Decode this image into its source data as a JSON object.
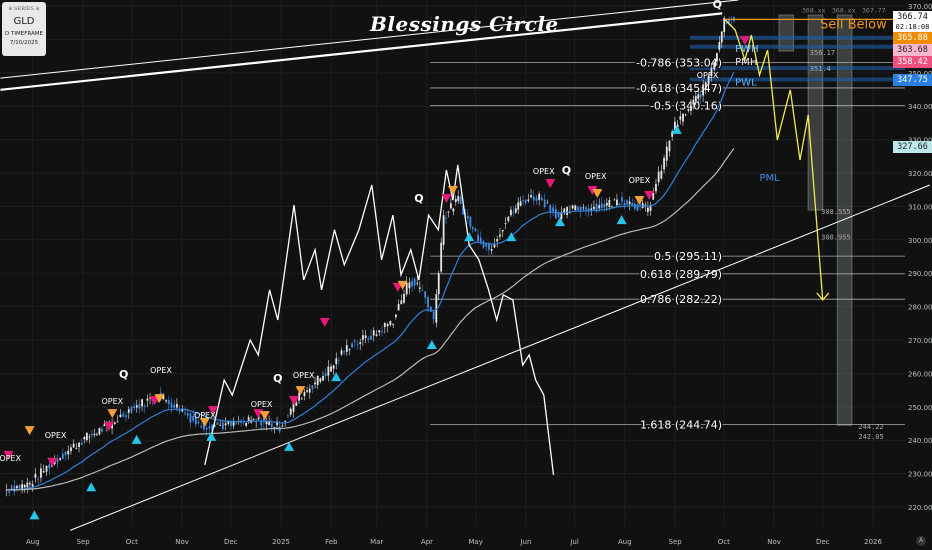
{
  "info_box": {
    "watermark": "※ SERIES ※",
    "symbol": "GLD",
    "timeframe": "D TIMEFRAME",
    "date": "7/10/2025"
  },
  "title": "Blessings Circle",
  "colors": {
    "background": "#111112",
    "up_candle": "#e6e6e6",
    "down_candle": "#3d8ee6",
    "ema": "#2f7fd6",
    "sma": "#b9b9b9",
    "projection_white": "#ffffff",
    "projection_yellow": "#f2e94e",
    "sell_below": "#f0961e",
    "fib": "#cfcfcf",
    "band": "#1f5fa8",
    "signal_up": "#25c4e8",
    "signal_down_pink": "#e8187a",
    "signal_down_orange": "#f5a13a",
    "box": "#8a9590"
  },
  "price_badges": [
    {
      "value": "366.74",
      "sub": "02:18:08",
      "bg": "#ffffff",
      "fg": "#111111",
      "price": 366.74
    },
    {
      "value": "365.88",
      "bg": "#f08c00",
      "fg": "#ffffff",
      "price": 364.2
    },
    {
      "value": "363.68",
      "bg": "#f7b6cc",
      "fg": "#222222",
      "price": 361.0
    },
    {
      "value": "358.42",
      "bg": "#ef4f7e",
      "fg": "#ffffff",
      "price": 357.6
    },
    {
      "value": "347.75",
      "bg": "#2a7fe0",
      "fg": "#ffffff",
      "price": 347.75
    },
    {
      "value": "327.66",
      "bg": "#bde8ea",
      "fg": "#222222",
      "price": 327.66
    }
  ],
  "chart_data": {
    "type": "candlestick",
    "symbol": "GLD",
    "ylim": [
      215,
      372
    ],
    "xlim": [
      "2024-07-12",
      "2026-02-05"
    ],
    "grid": true,
    "y_ticks": [
      220,
      230,
      240,
      250,
      260,
      270,
      280,
      290,
      300,
      310,
      320,
      330,
      340,
      350,
      360,
      370
    ],
    "x_ticks": [
      {
        "label": "Aug",
        "date": "2024-08-01"
      },
      {
        "label": "Sep",
        "date": "2024-09-01"
      },
      {
        "label": "Oct",
        "date": "2024-10-01"
      },
      {
        "label": "Nov",
        "date": "2024-11-01"
      },
      {
        "label": "Dec",
        "date": "2024-12-01"
      },
      {
        "label": "2025",
        "date": "2025-01-01"
      },
      {
        "label": "Feb",
        "date": "2025-02-01"
      },
      {
        "label": "Mar",
        "date": "2025-03-01"
      },
      {
        "label": "Apr",
        "date": "2025-04-01"
      },
      {
        "label": "May",
        "date": "2025-05-01"
      },
      {
        "label": "Jun",
        "date": "2025-06-01"
      },
      {
        "label": "Jul",
        "date": "2025-07-01"
      },
      {
        "label": "Aug",
        "date": "2025-08-01"
      },
      {
        "label": "Sep",
        "date": "2025-09-01"
      },
      {
        "label": "Oct",
        "date": "2025-10-01"
      },
      {
        "label": "Nov",
        "date": "2025-11-01"
      },
      {
        "label": "Dec",
        "date": "2025-12-01"
      },
      {
        "label": "2026",
        "date": "2026-01-01"
      }
    ],
    "closes": [
      [
        "2024-07-15",
        225
      ],
      [
        "2024-07-31",
        227
      ],
      [
        "2024-08-12",
        232.6
      ],
      [
        "2024-09-01",
        240
      ],
      [
        "2024-09-18",
        244.5
      ],
      [
        "2024-09-30",
        249
      ],
      [
        "2024-10-18",
        253.5
      ],
      [
        "2024-11-02",
        249
      ],
      [
        "2024-11-12",
        244.5
      ],
      [
        "2024-12-02",
        244.5
      ],
      [
        "2024-12-19",
        246
      ],
      [
        "2025-01-01",
        244
      ],
      [
        "2025-01-13",
        253
      ],
      [
        "2025-01-31",
        261
      ],
      [
        "2025-02-13",
        268.5
      ],
      [
        "2025-02-28",
        271.5
      ],
      [
        "2025-03-12",
        276
      ],
      [
        "2025-03-22",
        288
      ],
      [
        "2025-03-30",
        285
      ],
      [
        "2025-04-06",
        276
      ],
      [
        "2025-04-12",
        307
      ],
      [
        "2025-04-21",
        312
      ],
      [
        "2025-04-30",
        303
      ],
      [
        "2025-05-10",
        297
      ],
      [
        "2025-05-22",
        307
      ],
      [
        "2025-05-31",
        312
      ],
      [
        "2025-06-10",
        313
      ],
      [
        "2025-06-22",
        307
      ],
      [
        "2025-06-29",
        309
      ],
      [
        "2025-07-17",
        310
      ],
      [
        "2025-07-31",
        312
      ],
      [
        "2025-08-16",
        309
      ],
      [
        "2025-08-26",
        324
      ],
      [
        "2025-08-31",
        333
      ],
      [
        "2025-09-10",
        339
      ],
      [
        "2025-09-19",
        345
      ],
      [
        "2025-09-26",
        354
      ],
      [
        "2025-10-02",
        365.8
      ],
      [
        "2025-10-08",
        366.74
      ]
    ],
    "last_price": 366.74,
    "white_projection": [
      [
        "2024-11-15",
        232.6
      ],
      [
        "2024-11-27",
        258.0
      ],
      [
        "2024-12-02",
        253.5
      ],
      [
        "2024-12-13",
        270.0
      ],
      [
        "2024-12-18",
        265.5
      ],
      [
        "2024-12-25",
        285.0
      ],
      [
        "2024-12-30",
        276.0
      ],
      [
        "2025-01-09",
        310.4
      ],
      [
        "2025-01-15",
        288.0
      ],
      [
        "2025-01-22",
        297.0
      ],
      [
        "2025-01-26",
        285.0
      ],
      [
        "2025-02-03",
        303.0
      ],
      [
        "2025-02-09",
        292.5
      ],
      [
        "2025-02-18",
        303.0
      ],
      [
        "2025-02-26",
        316.4
      ],
      [
        "2025-03-04",
        294.0
      ],
      [
        "2025-03-11",
        307.4
      ],
      [
        "2025-03-16",
        289.5
      ],
      [
        "2025-03-22",
        297.0
      ],
      [
        "2025-03-27",
        288.0
      ],
      [
        "2025-04-02",
        307.4
      ],
      [
        "2025-04-08",
        303.0
      ],
      [
        "2025-04-13",
        320.9
      ],
      [
        "2025-04-17",
        311.9
      ],
      [
        "2025-04-20",
        322.4
      ],
      [
        "2025-04-27",
        298.4
      ],
      [
        "2025-05-03",
        294.0
      ],
      [
        "2025-05-09",
        285.0
      ],
      [
        "2025-05-14",
        276.0
      ],
      [
        "2025-05-18",
        283.5
      ],
      [
        "2025-05-24",
        282.0
      ],
      [
        "2025-05-30",
        262.5
      ],
      [
        "2025-06-03",
        265.5
      ],
      [
        "2025-06-07",
        258.0
      ],
      [
        "2025-06-12",
        253.5
      ],
      [
        "2025-06-18",
        229.6
      ]
    ],
    "yellow_projection": [
      [
        "2025-10-02",
        365.8
      ],
      [
        "2025-10-08",
        362.8
      ],
      [
        "2025-10-14",
        353.8
      ],
      [
        "2025-10-18",
        361.3
      ],
      [
        "2025-10-23",
        349.3
      ],
      [
        "2025-10-28",
        356.8
      ],
      [
        "2025-11-03",
        329.9
      ],
      [
        "2025-11-11",
        344.9
      ],
      [
        "2025-11-17",
        323.9
      ],
      [
        "2025-11-22",
        337.4
      ],
      [
        "2025-12-01",
        282.0
      ]
    ],
    "channel_lines": [
      {
        "from": [
          "2024-07-12",
          344.9
        ],
        "to": [
          "2025-09-30",
          367.8
        ],
        "weight": "thick"
      },
      {
        "from": [
          "2024-07-12",
          348.4
        ],
        "to": [
          "2025-10-10",
          371.8
        ],
        "weight": "thin"
      },
      {
        "from": [
          "2024-08-24",
          213.0
        ],
        "to": [
          "2026-02-05",
          316.4
        ],
        "weight": "thin"
      }
    ],
    "fib_levels": [
      {
        "label": "-0.786 (353.04)",
        "price": 353.04
      },
      {
        "label": "-0.618 (345.47)",
        "price": 345.47
      },
      {
        "label": "-0.5 (340.16)",
        "price": 340.16
      },
      {
        "label": "0.5 (295.11)",
        "price": 295.11
      },
      {
        "label": "0.618 (289.79)",
        "price": 289.79
      },
      {
        "label": "0.786 (282.22)",
        "price": 282.22
      },
      {
        "label": "1.618 (244.74)",
        "price": 244.74
      }
    ],
    "blue_bands": [
      360.5,
      357.8,
      351.4,
      348.0
    ],
    "sell_below": {
      "label": "Sell Below",
      "price": 366.0,
      "values": [
        "368.xx",
        "368.xx",
        "367.77"
      ]
    },
    "level_labels": [
      {
        "text": "356.17",
        "date": "2025-11-23",
        "price": 356.17
      },
      {
        "text": "351.4",
        "date": "2025-11-23",
        "price": 351.4
      },
      {
        "text": "308.555",
        "date": "2025-11-30",
        "price": 308.555
      },
      {
        "text": "300.955",
        "date": "2025-11-30",
        "price": 300.955
      },
      {
        "text": "244.22",
        "date": "2025-12-23",
        "price": 244.22
      },
      {
        "text": "242.05",
        "date": "2025-12-23",
        "price": 242.05
      }
    ],
    "range_labels": [
      {
        "text": "PWH",
        "date": "2025-10-08",
        "price": 357.5,
        "color": "#7fc4ff"
      },
      {
        "text": "PMH",
        "date": "2025-10-08",
        "price": 353.5,
        "color": "#e6e6e6"
      },
      {
        "text": "PWL",
        "date": "2025-10-08",
        "price": 347.4,
        "color": "#5fb0ff"
      },
      {
        "text": "PML",
        "date": "2025-10-23",
        "price": 318.8,
        "color": "#3d8ee6"
      }
    ],
    "boxes": [
      {
        "from": [
          "2025-11-04",
          367.3
        ],
        "to": [
          "2025-11-13",
          356.5
        ]
      },
      {
        "from": [
          "2025-11-22",
          367.3
        ],
        "to": [
          "2025-12-01",
          308.9
        ]
      },
      {
        "from": [
          "2025-12-10",
          367.3
        ],
        "to": [
          "2025-12-19",
          244.5
        ]
      }
    ],
    "signals_up": [
      [
        "2024-08-02",
        217.5
      ],
      [
        "2024-09-06",
        225.9
      ],
      [
        "2024-10-04",
        240.1
      ],
      [
        "2024-11-19",
        241.0
      ],
      [
        "2025-01-06",
        238.0
      ],
      [
        "2025-02-04",
        258.9
      ],
      [
        "2025-04-04",
        268.5
      ],
      [
        "2025-04-27",
        300.8
      ],
      [
        "2025-05-23",
        300.8
      ],
      [
        "2025-06-22",
        305.3
      ],
      [
        "2025-07-30",
        305.9
      ],
      [
        "2025-09-02",
        332.9
      ]
    ],
    "signals_down_pink": [
      [
        "2024-07-17",
        235.6
      ],
      [
        "2024-08-13",
        233.5
      ],
      [
        "2024-09-17",
        244.3
      ],
      [
        "2024-10-15",
        252
      ],
      [
        "2024-11-20",
        249
      ],
      [
        "2024-12-18",
        248.1
      ],
      [
        "2025-01-09",
        252
      ],
      [
        "2025-01-28",
        275.4
      ],
      [
        "2025-03-14",
        285.9
      ],
      [
        "2025-04-13",
        312.5
      ],
      [
        "2025-06-16",
        317
      ],
      [
        "2025-07-12",
        314.9
      ],
      [
        "2025-08-16",
        313.4
      ],
      [
        "2025-10-14",
        359.8
      ]
    ],
    "signals_down_orange": [
      [
        "2024-07-30",
        243
      ],
      [
        "2024-09-19",
        248.1
      ],
      [
        "2024-10-18",
        252.6
      ],
      [
        "2024-11-15",
        245.5
      ],
      [
        "2024-12-22",
        247.5
      ],
      [
        "2025-01-13",
        255
      ],
      [
        "2025-03-17",
        286.5
      ],
      [
        "2025-04-17",
        314.9
      ],
      [
        "2025-07-15",
        314
      ],
      [
        "2025-08-10",
        311.9
      ]
    ],
    "annotations": [
      {
        "text": "Q",
        "date": "2024-09-26",
        "price": 258.6
      },
      {
        "text": "Q",
        "date": "2024-12-30",
        "price": 257.4
      },
      {
        "text": "Q",
        "date": "2025-03-27",
        "price": 311.3
      },
      {
        "text": "Q",
        "date": "2025-06-26",
        "price": 319.7
      },
      {
        "text": "Q",
        "date": "2025-09-27",
        "price": 369.4
      },
      {
        "text": "OPEX",
        "date": "2024-07-18",
        "price": 233.7
      },
      {
        "text": "OPEX",
        "date": "2024-08-15",
        "price": 240.7
      },
      {
        "text": "OPEX",
        "date": "2024-09-19",
        "price": 250.8
      },
      {
        "text": "OPEX",
        "date": "2024-10-19",
        "price": 260.1
      },
      {
        "text": "OPEX",
        "date": "2024-11-15",
        "price": 246.7
      },
      {
        "text": "OPEX",
        "date": "2024-12-20",
        "price": 249.9
      },
      {
        "text": "OPEX",
        "date": "2025-01-15",
        "price": 258.6
      },
      {
        "text": "OPEX",
        "date": "2025-06-12",
        "price": 319.7
      },
      {
        "text": "OPEX",
        "date": "2025-07-14",
        "price": 318.2
      },
      {
        "text": "OPEX",
        "date": "2025-08-10",
        "price": 317.0
      },
      {
        "text": "OPEX",
        "date": "2025-09-21",
        "price": 348.4
      }
    ]
  },
  "axis_button": "A"
}
